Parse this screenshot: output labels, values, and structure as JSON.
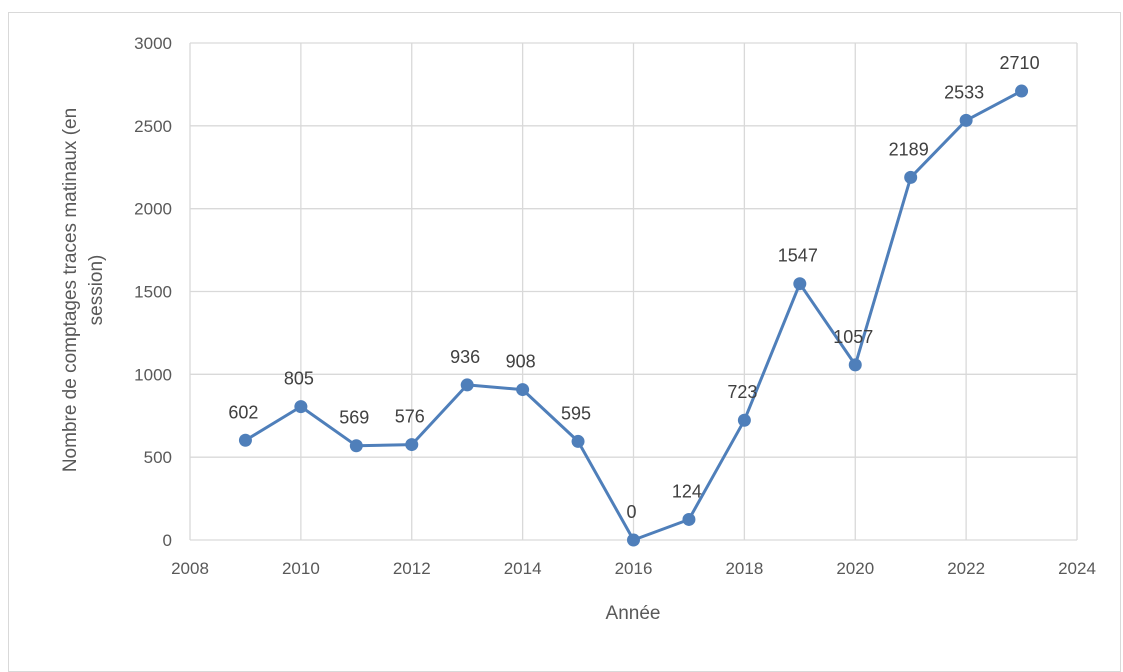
{
  "chart_data": {
    "type": "line",
    "title": "",
    "xlabel": "Année",
    "ylabel_lines": [
      "Nombre de comptages traces matinaux (en",
      "session)"
    ],
    "xlim": [
      2008,
      2024
    ],
    "ylim": [
      0,
      3000
    ],
    "x_ticks": [
      2008,
      2010,
      2012,
      2014,
      2016,
      2018,
      2020,
      2022,
      2024
    ],
    "y_ticks": [
      0,
      500,
      1000,
      1500,
      2000,
      2500,
      3000
    ],
    "grid": true,
    "legend": "none",
    "series": [
      {
        "color": "#4f7fba",
        "x": [
          2009,
          2010,
          2011,
          2012,
          2013,
          2014,
          2015,
          2016,
          2017,
          2018,
          2019,
          2020,
          2021,
          2022,
          2023
        ],
        "y": [
          602,
          805,
          569,
          576,
          936,
          908,
          595,
          0,
          124,
          723,
          1547,
          1057,
          2189,
          2533,
          2710
        ],
        "labels": [
          "602",
          "805",
          "569",
          "576",
          "936",
          "908",
          "595",
          "0",
          "124",
          "723",
          "1547",
          "1057",
          "2189",
          "2533",
          "2710"
        ]
      }
    ]
  }
}
